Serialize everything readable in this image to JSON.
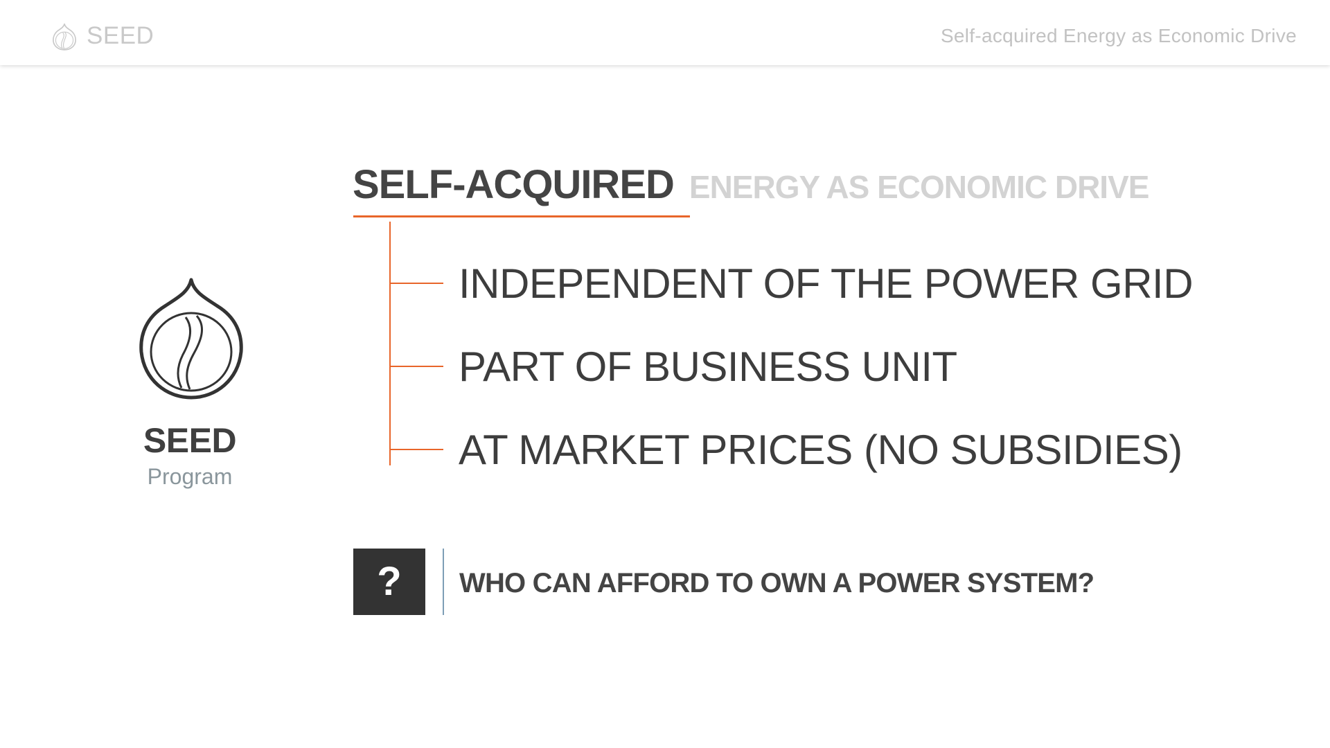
{
  "header": {
    "brand": "SEED",
    "subtitle": "Self-acquired Energy as Economic Drive",
    "logo_icon": "seed-icon"
  },
  "brand_block": {
    "title": "SEED",
    "subtitle": "Program",
    "logo_icon": "seed-icon"
  },
  "heading": {
    "strong": "SELF-ACQUIRED",
    "light": "ENERGY AS ECONOMIC DRIVE",
    "accent_color": "#e8652a"
  },
  "items": [
    "INDEPENDENT OF THE POWER GRID",
    "PART OF BUSINESS UNIT",
    "AT MARKET PRICES (NO SUBSIDIES)"
  ],
  "question": {
    "mark": "?",
    "text": "WHO CAN AFFORD TO OWN A POWER SYSTEM?"
  }
}
